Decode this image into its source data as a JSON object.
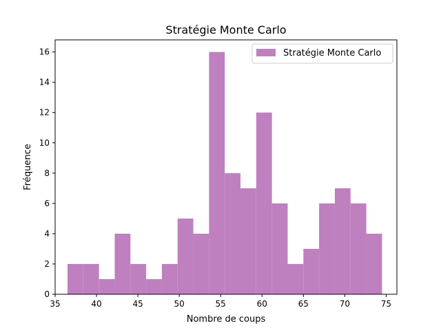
{
  "chart_data": {
    "type": "bar",
    "title": "Stratégie Monte Carlo",
    "xlabel": "Nombre de coups",
    "ylabel": "Fréquence",
    "xlim": [
      35,
      76.3
    ],
    "ylim": [
      0,
      16.8
    ],
    "xticks": [
      35,
      40,
      45,
      50,
      55,
      60,
      65,
      70,
      75
    ],
    "yticks": [
      0,
      2,
      4,
      6,
      8,
      10,
      12,
      14,
      16
    ],
    "bin_edges": [
      36.5,
      38.4,
      40.3,
      42.2,
      44.1,
      46.0,
      47.9,
      49.8,
      51.7,
      53.6,
      55.5,
      57.4,
      59.3,
      61.2,
      63.1,
      65.0,
      66.9,
      68.8,
      70.7,
      72.6,
      74.5
    ],
    "series": [
      {
        "name": "Stratégie Monte Carlo",
        "color": "#bf80bf",
        "values": [
          2,
          2,
          1,
          4,
          2,
          1,
          2,
          5,
          4,
          16,
          8,
          7,
          12,
          6,
          2,
          3,
          6,
          7,
          6,
          4
        ]
      }
    ],
    "legend_position": "top-right",
    "grid": false
  }
}
